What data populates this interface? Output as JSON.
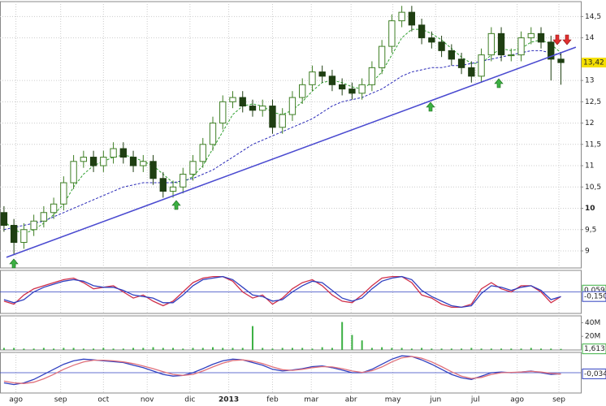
{
  "chart_data": [
    {
      "type": "candlestick",
      "xlim": [
        -0.4,
        58
      ],
      "xticks": [
        {
          "value": 1.2,
          "label": "ago"
        },
        {
          "value": 5.7,
          "label": "sep"
        },
        {
          "value": 10,
          "label": "oct"
        },
        {
          "value": 14.4,
          "label": "nov"
        },
        {
          "value": 18.7,
          "label": "dic"
        },
        {
          "value": 22.6,
          "label": "2013"
        },
        {
          "value": 27,
          "label": "feb"
        },
        {
          "value": 30.9,
          "label": "mar"
        },
        {
          "value": 34.9,
          "label": "abr"
        },
        {
          "value": 39.1,
          "label": "may"
        },
        {
          "value": 43.4,
          "label": "jun"
        },
        {
          "value": 47.4,
          "label": "jul"
        },
        {
          "value": 51.6,
          "label": "ago"
        },
        {
          "value": 55.8,
          "label": "sep"
        }
      ],
      "ylim": [
        8.6,
        14.85
      ],
      "yticks": [
        9,
        {
          "value": 9.5,
          "label": "9,5"
        },
        10,
        {
          "value": 10.5,
          "label": "10,5"
        },
        11,
        {
          "value": 11.5,
          "label": "11,5"
        },
        12,
        {
          "value": 12.5,
          "label": "12,5"
        },
        13,
        14,
        {
          "value": 14.5,
          "label": "14,5"
        }
      ],
      "grid": true,
      "up_color": "#3f7f25",
      "down_color": "#1f3f12",
      "open": [
        9.9,
        9.6,
        9.2,
        9.5,
        9.7,
        9.9,
        10.1,
        10.6,
        11.1,
        11.2,
        11.0,
        11.2,
        11.4,
        11.2,
        11.0,
        11.1,
        10.7,
        10.4,
        10.5,
        10.8,
        11.1,
        11.5,
        12.0,
        12.5,
        12.6,
        12.4,
        12.3,
        12.4,
        11.9,
        12.2,
        12.6,
        12.9,
        13.2,
        13.1,
        12.9,
        12.8,
        12.7,
        12.9,
        13.3,
        13.8,
        14.4,
        14.6,
        14.3,
        14.0,
        13.9,
        13.7,
        13.5,
        13.3,
        13.1,
        13.6,
        14.1,
        13.6,
        13.6,
        14.0,
        14.1,
        13.9,
        13.5
      ],
      "high": [
        10.05,
        9.75,
        9.65,
        9.85,
        10.05,
        10.25,
        10.75,
        11.25,
        11.35,
        11.35,
        11.35,
        11.55,
        11.55,
        11.35,
        11.25,
        11.25,
        10.85,
        10.65,
        10.95,
        11.25,
        11.65,
        12.15,
        12.65,
        12.75,
        12.75,
        12.55,
        12.55,
        12.55,
        12.35,
        12.75,
        13.05,
        13.35,
        13.35,
        13.25,
        13.05,
        12.95,
        13.05,
        13.45,
        13.95,
        14.55,
        14.75,
        14.75,
        14.45,
        14.15,
        14.05,
        13.85,
        13.65,
        13.45,
        13.75,
        14.25,
        14.25,
        13.75,
        14.15,
        14.25,
        14.25,
        14.05,
        13.65
      ],
      "low": [
        9.45,
        8.9,
        9.05,
        9.35,
        9.55,
        9.75,
        9.95,
        10.45,
        10.95,
        10.85,
        10.85,
        11.05,
        11.05,
        10.85,
        10.85,
        10.55,
        10.25,
        10.25,
        10.35,
        10.65,
        10.95,
        11.35,
        11.85,
        12.35,
        12.25,
        12.15,
        12.15,
        11.75,
        11.75,
        12.05,
        12.45,
        12.75,
        12.95,
        12.75,
        12.65,
        12.55,
        12.55,
        12.75,
        13.15,
        13.65,
        14.25,
        14.15,
        13.85,
        13.75,
        13.55,
        13.35,
        13.15,
        12.95,
        12.95,
        13.45,
        13.45,
        13.45,
        13.45,
        13.85,
        13.75,
        13.0,
        12.9
      ],
      "close": [
        9.6,
        9.2,
        9.5,
        9.7,
        9.9,
        10.1,
        10.6,
        11.1,
        11.2,
        11.0,
        11.2,
        11.4,
        11.2,
        11.0,
        11.1,
        10.7,
        10.4,
        10.5,
        10.8,
        11.1,
        11.5,
        12.0,
        12.5,
        12.6,
        12.4,
        12.3,
        12.4,
        11.9,
        12.2,
        12.6,
        12.9,
        13.2,
        13.1,
        12.9,
        12.8,
        12.7,
        12.9,
        13.3,
        13.8,
        14.4,
        14.6,
        14.3,
        14.0,
        13.9,
        13.7,
        13.5,
        13.3,
        13.1,
        13.6,
        14.1,
        13.6,
        13.6,
        14.0,
        14.1,
        13.9,
        13.5,
        13.42
      ],
      "overlays": [
        {
          "color": "#2fa02f",
          "values": [
            9.7,
            9.5,
            9.4,
            9.5,
            9.65,
            9.85,
            10.1,
            10.5,
            10.8,
            11.0,
            11.1,
            11.2,
            11.25,
            11.2,
            11.1,
            11.0,
            10.8,
            10.6,
            10.6,
            10.75,
            11.0,
            11.4,
            11.8,
            12.2,
            12.4,
            12.45,
            12.4,
            12.25,
            12.2,
            12.3,
            12.5,
            12.75,
            12.95,
            13.0,
            12.95,
            12.85,
            12.8,
            12.95,
            13.2,
            13.6,
            14.0,
            14.2,
            14.2,
            14.1,
            13.95,
            13.75,
            13.55,
            13.4,
            13.4,
            13.6,
            13.75,
            13.7,
            13.75,
            13.9,
            13.95,
            13.85,
            13.65
          ]
        },
        {
          "color": "#2a2ab8",
          "values": [
            9.5,
            9.55,
            9.6,
            9.65,
            9.7,
            9.8,
            9.9,
            10.0,
            10.1,
            10.2,
            10.3,
            10.4,
            10.5,
            10.55,
            10.6,
            10.6,
            10.6,
            10.6,
            10.65,
            10.7,
            10.8,
            10.9,
            11.05,
            11.2,
            11.35,
            11.5,
            11.6,
            11.7,
            11.8,
            11.9,
            12.0,
            12.1,
            12.25,
            12.4,
            12.5,
            12.55,
            12.6,
            12.7,
            12.8,
            12.95,
            13.1,
            13.2,
            13.25,
            13.3,
            13.3,
            13.35,
            13.35,
            13.4,
            13.45,
            13.5,
            13.55,
            13.6,
            13.65,
            13.7,
            13.7,
            13.65,
            13.6
          ]
        }
      ],
      "trendline": {
        "color": "#4a4ad0",
        "x": [
          0.25,
          57.5
        ],
        "y": [
          8.85,
          13.78
        ]
      },
      "tag": {
        "value": 13.42,
        "label": "13,42",
        "color": "#f5e000"
      }
    },
    {
      "type": "line",
      "ylim": [
        -0.7,
        0.7
      ],
      "series": [
        {
          "color": "#d0304a",
          "values": [
            -0.3,
            -0.4,
            -0.1,
            0.1,
            0.2,
            0.3,
            0.4,
            0.45,
            0.3,
            0.1,
            0.15,
            0.2,
            0.0,
            -0.2,
            -0.1,
            -0.3,
            -0.45,
            -0.3,
            0.0,
            0.3,
            0.45,
            0.5,
            0.5,
            0.35,
            0.0,
            -0.2,
            -0.1,
            -0.4,
            -0.2,
            0.1,
            0.3,
            0.4,
            0.2,
            -0.1,
            -0.3,
            -0.35,
            -0.1,
            0.2,
            0.45,
            0.5,
            0.5,
            0.3,
            -0.1,
            -0.2,
            -0.4,
            -0.5,
            -0.5,
            -0.4,
            0.1,
            0.3,
            0.1,
            0.0,
            0.2,
            0.2,
            0.0,
            -0.35,
            -0.15
          ]
        },
        {
          "color": "#3040c0",
          "values": [
            -0.25,
            -0.35,
            -0.25,
            0.0,
            0.15,
            0.25,
            0.35,
            0.4,
            0.35,
            0.2,
            0.15,
            0.15,
            0.05,
            -0.1,
            -0.15,
            -0.2,
            -0.35,
            -0.35,
            -0.1,
            0.2,
            0.4,
            0.45,
            0.5,
            0.4,
            0.15,
            -0.1,
            -0.15,
            -0.3,
            -0.25,
            0.0,
            0.2,
            0.35,
            0.3,
            0.05,
            -0.2,
            -0.3,
            -0.2,
            0.1,
            0.35,
            0.45,
            0.5,
            0.4,
            0.05,
            -0.15,
            -0.3,
            -0.45,
            -0.5,
            -0.45,
            -0.05,
            0.2,
            0.15,
            0.05,
            0.15,
            0.2,
            0.05,
            -0.25,
            -0.15
          ]
        }
      ],
      "tags": [
        {
          "value": 0.059,
          "label": "0,059",
          "color": "#3cb043"
        },
        {
          "value": -0.15,
          "label": "-0,150",
          "color": "#3040c0"
        }
      ]
    },
    {
      "type": "bar",
      "ylim": [
        0,
        50
      ],
      "yticks": [
        {
          "value": 20,
          "label": "20M"
        },
        {
          "value": 40,
          "label": "40M"
        }
      ],
      "color": "#3cb043",
      "values": [
        3,
        3,
        2,
        2,
        3,
        2,
        3,
        3,
        2,
        2,
        3,
        2,
        2,
        3,
        3,
        4,
        3,
        3,
        2,
        3,
        3,
        4,
        3,
        3,
        3,
        35,
        3,
        2,
        3,
        3,
        3,
        2,
        4,
        3,
        41,
        22,
        14,
        3,
        4,
        3,
        3,
        2,
        3,
        2,
        2,
        2,
        2,
        3,
        2,
        2,
        2,
        2,
        2,
        3,
        2,
        2,
        1.613
      ],
      "tags": [
        {
          "value": 1.613,
          "label": "1,613",
          "color": "#3cb043"
        }
      ]
    },
    {
      "type": "line",
      "ylim": [
        -0.6,
        0.6
      ],
      "series": [
        {
          "color": "#3040c0",
          "values": [
            -0.3,
            -0.35,
            -0.3,
            -0.2,
            -0.05,
            0.1,
            0.25,
            0.35,
            0.4,
            0.38,
            0.35,
            0.33,
            0.3,
            0.22,
            0.15,
            0.05,
            -0.05,
            -0.1,
            -0.08,
            0.0,
            0.12,
            0.25,
            0.35,
            0.4,
            0.38,
            0.3,
            0.22,
            0.1,
            0.05,
            0.08,
            0.12,
            0.18,
            0.2,
            0.15,
            0.08,
            0.0,
            0.0,
            0.1,
            0.25,
            0.4,
            0.5,
            0.48,
            0.38,
            0.25,
            0.1,
            -0.05,
            -0.15,
            -0.2,
            -0.1,
            0.0,
            0.02,
            0.0,
            0.02,
            0.05,
            0.0,
            -0.05,
            -0.034
          ]
        },
        {
          "color": "#e0707a",
          "values": [
            -0.25,
            -0.3,
            -0.32,
            -0.28,
            -0.18,
            -0.05,
            0.1,
            0.22,
            0.32,
            0.37,
            0.37,
            0.35,
            0.32,
            0.27,
            0.2,
            0.12,
            0.03,
            -0.05,
            -0.08,
            -0.05,
            0.05,
            0.17,
            0.28,
            0.36,
            0.38,
            0.34,
            0.27,
            0.17,
            0.09,
            0.07,
            0.1,
            0.15,
            0.18,
            0.17,
            0.12,
            0.05,
            0.01,
            0.06,
            0.17,
            0.32,
            0.44,
            0.48,
            0.43,
            0.32,
            0.18,
            0.03,
            -0.1,
            -0.17,
            -0.14,
            -0.05,
            0.0,
            0.01,
            0.02,
            0.04,
            0.02,
            -0.02,
            -0.04
          ]
        }
      ],
      "tags": [
        {
          "value": -0.034,
          "label": "-0,034",
          "color": "#3040c0"
        }
      ]
    }
  ]
}
